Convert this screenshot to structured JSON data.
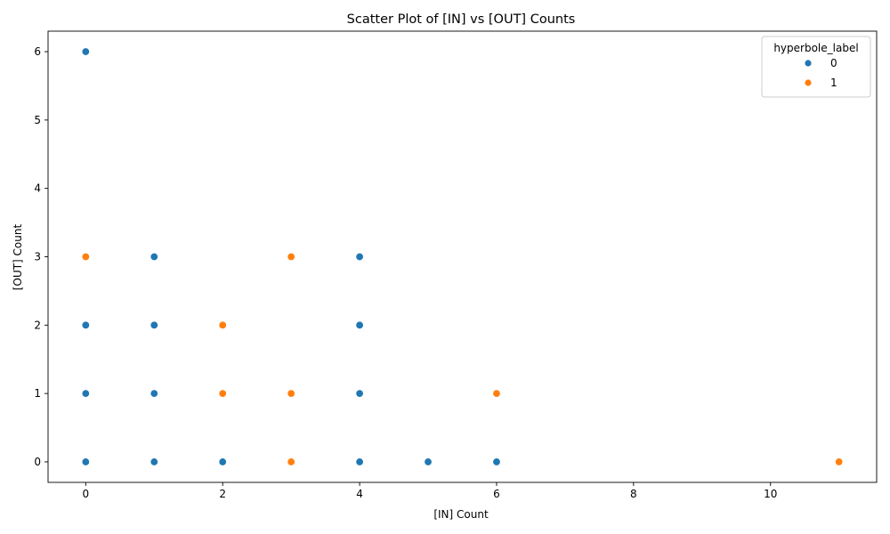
{
  "chart_data": {
    "type": "scatter",
    "title": "Scatter Plot of [IN] vs [OUT] Counts",
    "xlabel": "[IN] Count",
    "ylabel": "[OUT] Count",
    "xlim": [
      -0.55,
      11.55
    ],
    "ylim": [
      -0.3,
      6.3
    ],
    "xticks": [
      0,
      2,
      4,
      6,
      8,
      10
    ],
    "yticks": [
      0,
      1,
      2,
      3,
      4,
      5,
      6
    ],
    "grid": false,
    "legend": {
      "title": "hyperbole_label",
      "placement": "top-right"
    },
    "series": [
      {
        "name": "0",
        "color": "#1f77b4",
        "points": [
          [
            0,
            6
          ],
          [
            0,
            2
          ],
          [
            0,
            1
          ],
          [
            0,
            0
          ],
          [
            1,
            3
          ],
          [
            1,
            2
          ],
          [
            1,
            1
          ],
          [
            1,
            0
          ],
          [
            2,
            0
          ],
          [
            4,
            3
          ],
          [
            4,
            2
          ],
          [
            4,
            1
          ],
          [
            4,
            0
          ],
          [
            5,
            0
          ],
          [
            6,
            0
          ]
        ]
      },
      {
        "name": "1",
        "color": "#ff7f0e",
        "points": [
          [
            0,
            3
          ],
          [
            2,
            2
          ],
          [
            2,
            1
          ],
          [
            3,
            3
          ],
          [
            3,
            1
          ],
          [
            3,
            0
          ],
          [
            6,
            1
          ],
          [
            11,
            0
          ]
        ]
      }
    ]
  }
}
